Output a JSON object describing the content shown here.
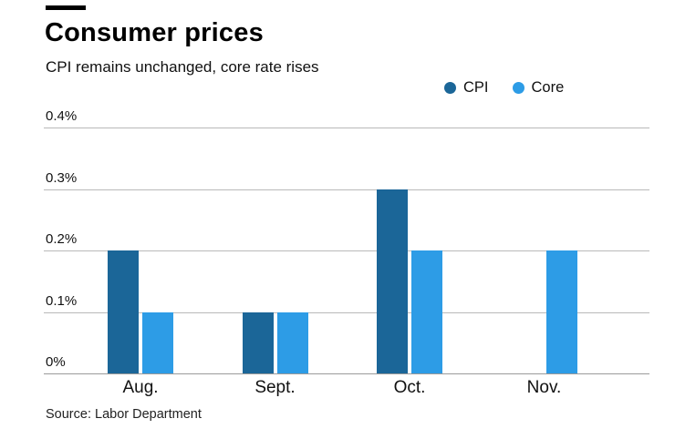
{
  "chart_data": {
    "type": "bar",
    "title": "Consumer prices",
    "subtitle": "CPI remains unchanged, core rate rises",
    "source": "Source: Labor Department",
    "categories": [
      "Aug.",
      "Sept.",
      "Oct.",
      "Nov."
    ],
    "series": [
      {
        "name": "CPI",
        "color": "#1b6698",
        "values": [
          0.2,
          0.1,
          0.3,
          0.0
        ]
      },
      {
        "name": "Core",
        "color": "#2d9ce6",
        "values": [
          0.1,
          0.1,
          0.2,
          0.2
        ]
      }
    ],
    "y_axis": {
      "ylim": [
        0,
        0.4
      ],
      "grid": true,
      "ticks": [
        {
          "value": 0.4,
          "label": "0.4%"
        },
        {
          "value": 0.3,
          "label": "0.3%"
        },
        {
          "value": 0.2,
          "label": "0.2%"
        },
        {
          "value": 0.1,
          "label": "0.1%"
        },
        {
          "value": 0.0,
          "label": "0%"
        }
      ]
    },
    "legend_position": "top-right"
  }
}
